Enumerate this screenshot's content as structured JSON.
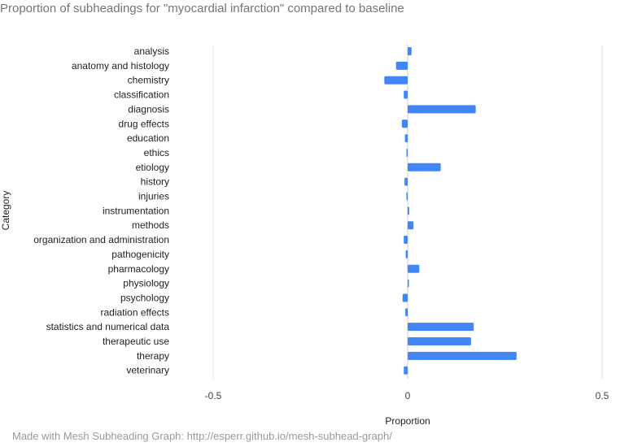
{
  "title": "Proportion of subheadings for \"myocardial infarction\" compared to baseline",
  "footer": "Made with Mesh Subheading Graph: http://esperr.github.io/mesh-subhead-graph/",
  "colors": {
    "bar": "#4285f4",
    "grid": "#e0e0e0",
    "zero_line": "#cccccc"
  },
  "chart_data": {
    "type": "bar",
    "orientation": "horizontal",
    "xlabel": "Proportion",
    "ylabel": "Category",
    "xlim": [
      -0.5,
      0.5
    ],
    "xticks": [
      -0.5,
      0,
      0.5
    ],
    "xtick_labels": [
      "-0.5",
      "0",
      "0.5"
    ],
    "grid": true,
    "categories": [
      "analysis",
      "anatomy and histology",
      "chemistry",
      "classification",
      "diagnosis",
      "drug effects",
      "education",
      "ethics",
      "etiology",
      "history",
      "injuries",
      "instrumentation",
      "methods",
      "organization and administration",
      "pathogenicity",
      "pharmacology",
      "physiology",
      "psychology",
      "radiation effects",
      "statistics and numerical data",
      "therapeutic use",
      "therapy",
      "veterinary"
    ],
    "values": [
      0.01,
      -0.03,
      -0.06,
      -0.01,
      0.175,
      -0.015,
      -0.007,
      -0.002,
      0.085,
      -0.008,
      -0.003,
      0.004,
      0.015,
      -0.01,
      -0.005,
      0.03,
      0.003,
      -0.013,
      -0.006,
      0.17,
      0.163,
      0.28,
      -0.01
    ]
  }
}
